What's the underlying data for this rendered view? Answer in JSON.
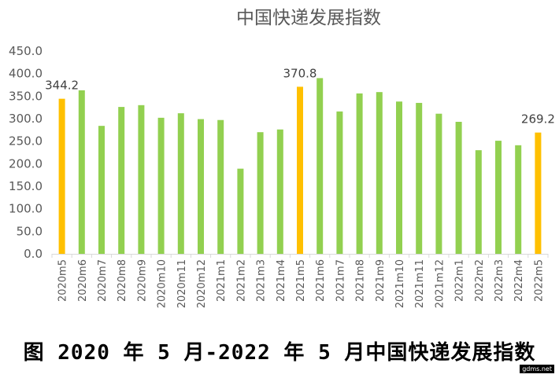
{
  "chart_data": {
    "type": "bar",
    "title": "中国快递发展指数",
    "categories": [
      "2020m5",
      "2020m6",
      "2020m7",
      "2020m8",
      "2020m9",
      "2020m10",
      "2020m11",
      "2020m12",
      "2021m1",
      "2021m2",
      "2021m3",
      "2021m4",
      "2021m5",
      "2021m6",
      "2021m7",
      "2021m8",
      "2021m9",
      "2021m10",
      "2021m11",
      "2021m12",
      "2022m1",
      "2022m2",
      "2022m3",
      "2022m4",
      "2022m5"
    ],
    "values": [
      344.2,
      363,
      284,
      326,
      330,
      302,
      312,
      299,
      297,
      189,
      270,
      276,
      370.8,
      390,
      316,
      356,
      359,
      338,
      335,
      311,
      293,
      230,
      251,
      241,
      269.2
    ],
    "highlighted_categories": [
      "2020m5",
      "2021m5",
      "2022m5"
    ],
    "data_labels": [
      {
        "category": "2020m5",
        "text": "344.2"
      },
      {
        "category": "2021m5",
        "text": "370.8"
      },
      {
        "category": "2022m5",
        "text": "269.2"
      }
    ],
    "ylim": [
      0,
      450
    ],
    "yticks": [
      "0.0",
      "50.0",
      "100.0",
      "150.0",
      "200.0",
      "250.0",
      "300.0",
      "350.0",
      "400.0",
      "450.0"
    ],
    "xlabel": "",
    "ylabel": "",
    "grid": false,
    "legend": "none",
    "colors": {
      "default": "#92d050",
      "highlight": "#ffc000",
      "axis": "#d9d9d9",
      "text": "#595959"
    }
  },
  "caption": "图 2020 年 5 月-2022 年 5 月中国快递发展指数",
  "watermark": "gdms.net"
}
